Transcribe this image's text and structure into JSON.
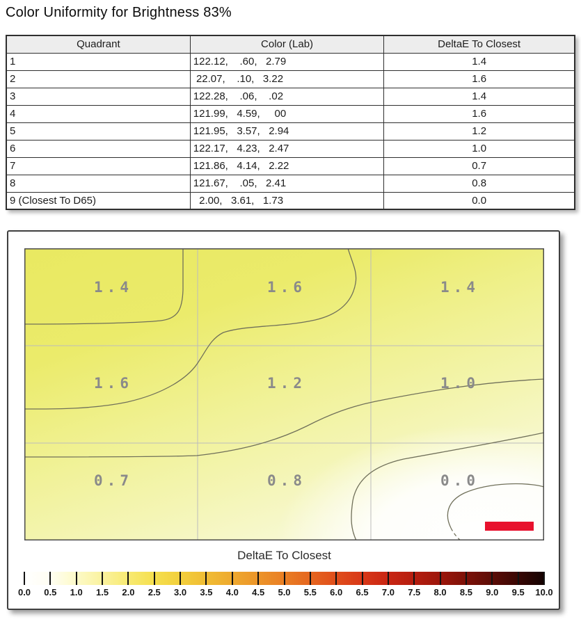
{
  "page": {
    "title": "Color Uniformity for Brightness 83%"
  },
  "table": {
    "columns": [
      "Quadrant",
      "Color (Lab)",
      "DeltaE To Closest"
    ],
    "rows": [
      {
        "quadrant": "1",
        "lab": "122.12,    .60,   2.79",
        "delta_e": "1.4"
      },
      {
        "quadrant": "2",
        "lab": " 22.07,    .10,   3.22",
        "delta_e": "1.6"
      },
      {
        "quadrant": "3",
        "lab": "122.28,    .06,    .02",
        "delta_e": "1.4"
      },
      {
        "quadrant": "4",
        "lab": "121.99,   4.59,     00",
        "delta_e": "1.6"
      },
      {
        "quadrant": "5",
        "lab": "121.95,   3.57,   2.94",
        "delta_e": "1.2"
      },
      {
        "quadrant": "6",
        "lab": "122.17,   4.23,   2.47",
        "delta_e": "1.0"
      },
      {
        "quadrant": "7",
        "lab": "121.86,   4.14,   2.22",
        "delta_e": "0.7"
      },
      {
        "quadrant": "8",
        "lab": "121.67,    .05,   2.41",
        "delta_e": "0.8"
      },
      {
        "quadrant": "9 (Closest To D65)",
        "lab": "  2.00,   3.61,   1.73",
        "delta_e": "0.0"
      }
    ]
  },
  "chart_data": {
    "type": "heatmap",
    "subtype": "contour-uniformity-map",
    "grid_rows": 3,
    "grid_cols": 3,
    "cell_values": [
      [
        1.4,
        1.6,
        1.4
      ],
      [
        1.6,
        1.2,
        1.0
      ],
      [
        0.7,
        0.8,
        0.0
      ]
    ],
    "cell_labels": [
      "1.4",
      "1.6",
      "1.4",
      "1.6",
      "1.2",
      "1.0",
      "0.7",
      "0.8",
      "0.0"
    ],
    "colorbar": {
      "label": "DeltaE To Closest",
      "min": 0.0,
      "max": 10.0,
      "step": 0.5,
      "ticks": [
        "0.0",
        "0.5",
        "1.0",
        "1.5",
        "2.0",
        "2.5",
        "3.0",
        "3.5",
        "4.0",
        "4.5",
        "5.0",
        "5.5",
        "6.0",
        "6.5",
        "7.0",
        "7.5",
        "8.0",
        "8.5",
        "9.0",
        "9.5",
        "10.0"
      ],
      "stop_colors": [
        "#ffffff",
        "#fffef2",
        "#fdfac8",
        "#faf29e",
        "#f8ea72",
        "#f5df4e",
        "#f2cf3c",
        "#f0bc34",
        "#eea92e",
        "#ec9429",
        "#e97e24",
        "#e5661f",
        "#e04e1b",
        "#d83717",
        "#c92613",
        "#b51d0f",
        "#9c160b",
        "#7d1108",
        "#5c0c06",
        "#390704",
        "#140201"
      ]
    },
    "colors": {
      "field_high": "#e9e961",
      "field_mid": "#f0f192",
      "field_low": "#f8f9d8",
      "white_spot": "#ffffff",
      "contour_line": "#70705a",
      "grid_line": "#bcbcbc",
      "marker_red": "#e8112d",
      "label_gray": "#8a8a8a"
    },
    "legend_position": "bottom"
  }
}
